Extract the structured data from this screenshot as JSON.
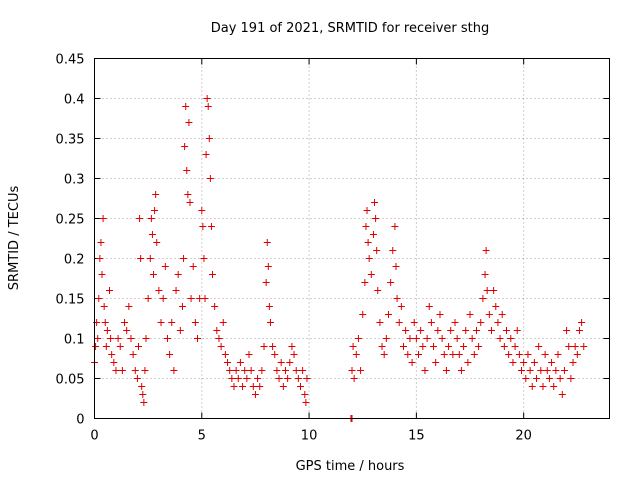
{
  "chart_data": {
    "type": "scatter",
    "title": "Day 191 of 2021, SRMTID for receiver sthg",
    "xlabel": "GPS time / hours",
    "ylabel": "SRMTID / TECUs",
    "xlim": [
      0,
      24
    ],
    "ylim": [
      0,
      0.45
    ],
    "xticks": [
      0,
      5,
      10,
      15,
      20
    ],
    "xtick_labels": [
      "0",
      "5",
      "10",
      "15",
      "20"
    ],
    "yticks": [
      0,
      0.05,
      0.1,
      0.15,
      0.2,
      0.25,
      0.3,
      0.35,
      0.4,
      0.45
    ],
    "ytick_labels": [
      "0",
      "0.05",
      "0.1",
      "0.15",
      "0.2",
      "0.25",
      "0.3",
      "0.35",
      "0.4",
      "0.45"
    ],
    "grid": true,
    "marker": "+",
    "marker_color": "#e00000",
    "series": [
      {
        "name": "SRMTID",
        "points": [
          [
            0.0,
            0.07
          ],
          [
            0.05,
            0.09
          ],
          [
            0.1,
            0.12
          ],
          [
            0.15,
            0.1
          ],
          [
            0.2,
            0.15
          ],
          [
            0.25,
            0.2
          ],
          [
            0.3,
            0.22
          ],
          [
            0.35,
            0.18
          ],
          [
            0.4,
            0.25
          ],
          [
            0.45,
            0.14
          ],
          [
            0.5,
            0.12
          ],
          [
            0.55,
            0.09
          ],
          [
            0.6,
            0.11
          ],
          [
            0.7,
            0.16
          ],
          [
            0.75,
            0.1
          ],
          [
            0.8,
            0.08
          ],
          [
            0.9,
            0.07
          ],
          [
            1.0,
            0.06
          ],
          [
            1.1,
            0.1
          ],
          [
            1.2,
            0.09
          ],
          [
            1.3,
            0.06
          ],
          [
            1.4,
            0.12
          ],
          [
            1.5,
            0.11
          ],
          [
            1.6,
            0.14
          ],
          [
            1.7,
            0.1
          ],
          [
            1.8,
            0.08
          ],
          [
            1.9,
            0.06
          ],
          [
            2.0,
            0.05
          ],
          [
            2.05,
            0.09
          ],
          [
            2.1,
            0.25
          ],
          [
            2.15,
            0.2
          ],
          [
            2.2,
            0.04
          ],
          [
            2.25,
            0.03
          ],
          [
            2.3,
            0.02
          ],
          [
            2.35,
            0.06
          ],
          [
            2.4,
            0.1
          ],
          [
            2.5,
            0.15
          ],
          [
            2.6,
            0.2
          ],
          [
            2.65,
            0.25
          ],
          [
            2.7,
            0.23
          ],
          [
            2.75,
            0.18
          ],
          [
            2.8,
            0.26
          ],
          [
            2.85,
            0.28
          ],
          [
            2.9,
            0.22
          ],
          [
            3.0,
            0.16
          ],
          [
            3.1,
            0.12
          ],
          [
            3.2,
            0.15
          ],
          [
            3.3,
            0.19
          ],
          [
            3.4,
            0.1
          ],
          [
            3.5,
            0.08
          ],
          [
            3.6,
            0.12
          ],
          [
            3.7,
            0.06
          ],
          [
            3.8,
            0.16
          ],
          [
            3.9,
            0.18
          ],
          [
            4.0,
            0.11
          ],
          [
            4.1,
            0.14
          ],
          [
            4.15,
            0.2
          ],
          [
            4.2,
            0.34
          ],
          [
            4.25,
            0.39
          ],
          [
            4.3,
            0.31
          ],
          [
            4.35,
            0.28
          ],
          [
            4.4,
            0.37
          ],
          [
            4.45,
            0.27
          ],
          [
            4.5,
            0.15
          ],
          [
            4.6,
            0.19
          ],
          [
            4.7,
            0.12
          ],
          [
            4.8,
            0.1
          ],
          [
            4.9,
            0.15
          ],
          [
            5.0,
            0.26
          ],
          [
            5.05,
            0.24
          ],
          [
            5.1,
            0.2
          ],
          [
            5.15,
            0.15
          ],
          [
            5.2,
            0.33
          ],
          [
            5.25,
            0.4
          ],
          [
            5.3,
            0.39
          ],
          [
            5.35,
            0.35
          ],
          [
            5.4,
            0.3
          ],
          [
            5.45,
            0.24
          ],
          [
            5.5,
            0.18
          ],
          [
            5.6,
            0.14
          ],
          [
            5.7,
            0.11
          ],
          [
            5.8,
            0.1
          ],
          [
            5.9,
            0.09
          ],
          [
            6.0,
            0.12
          ],
          [
            6.1,
            0.08
          ],
          [
            6.2,
            0.07
          ],
          [
            6.3,
            0.06
          ],
          [
            6.4,
            0.05
          ],
          [
            6.5,
            0.04
          ],
          [
            6.6,
            0.06
          ],
          [
            6.7,
            0.05
          ],
          [
            6.8,
            0.07
          ],
          [
            6.9,
            0.04
          ],
          [
            7.0,
            0.06
          ],
          [
            7.1,
            0.05
          ],
          [
            7.2,
            0.08
          ],
          [
            7.3,
            0.06
          ],
          [
            7.4,
            0.04
          ],
          [
            7.5,
            0.03
          ],
          [
            7.6,
            0.05
          ],
          [
            7.7,
            0.04
          ],
          [
            7.8,
            0.06
          ],
          [
            7.9,
            0.09
          ],
          [
            8.0,
            0.17
          ],
          [
            8.05,
            0.22
          ],
          [
            8.1,
            0.19
          ],
          [
            8.15,
            0.14
          ],
          [
            8.2,
            0.12
          ],
          [
            8.3,
            0.09
          ],
          [
            8.4,
            0.08
          ],
          [
            8.5,
            0.06
          ],
          [
            8.6,
            0.05
          ],
          [
            8.7,
            0.07
          ],
          [
            8.8,
            0.04
          ],
          [
            8.9,
            0.06
          ],
          [
            9.0,
            0.05
          ],
          [
            9.1,
            0.07
          ],
          [
            9.2,
            0.09
          ],
          [
            9.3,
            0.08
          ],
          [
            9.4,
            0.06
          ],
          [
            9.5,
            0.05
          ],
          [
            9.6,
            0.04
          ],
          [
            9.7,
            0.06
          ],
          [
            9.8,
            0.03
          ],
          [
            9.85,
            0.02
          ],
          [
            9.9,
            0.05
          ],
          [
            11.95,
            0.0
          ],
          [
            12.0,
            0.0
          ],
          [
            12.0,
            0.06
          ],
          [
            12.05,
            0.09
          ],
          [
            12.1,
            0.05
          ],
          [
            12.2,
            0.08
          ],
          [
            12.3,
            0.1
          ],
          [
            12.4,
            0.06
          ],
          [
            12.5,
            0.13
          ],
          [
            12.6,
            0.17
          ],
          [
            12.65,
            0.24
          ],
          [
            12.7,
            0.26
          ],
          [
            12.75,
            0.22
          ],
          [
            12.8,
            0.2
          ],
          [
            12.9,
            0.18
          ],
          [
            13.0,
            0.23
          ],
          [
            13.05,
            0.27
          ],
          [
            13.1,
            0.25
          ],
          [
            13.15,
            0.21
          ],
          [
            13.2,
            0.16
          ],
          [
            13.3,
            0.12
          ],
          [
            13.4,
            0.09
          ],
          [
            13.5,
            0.08
          ],
          [
            13.6,
            0.1
          ],
          [
            13.7,
            0.13
          ],
          [
            13.8,
            0.17
          ],
          [
            13.9,
            0.21
          ],
          [
            14.0,
            0.24
          ],
          [
            14.05,
            0.19
          ],
          [
            14.1,
            0.15
          ],
          [
            14.2,
            0.12
          ],
          [
            14.3,
            0.14
          ],
          [
            14.4,
            0.09
          ],
          [
            14.5,
            0.11
          ],
          [
            14.6,
            0.08
          ],
          [
            14.7,
            0.1
          ],
          [
            14.8,
            0.07
          ],
          [
            14.9,
            0.12
          ],
          [
            15.0,
            0.1
          ],
          [
            15.1,
            0.08
          ],
          [
            15.2,
            0.11
          ],
          [
            15.3,
            0.09
          ],
          [
            15.4,
            0.06
          ],
          [
            15.5,
            0.1
          ],
          [
            15.6,
            0.14
          ],
          [
            15.7,
            0.12
          ],
          [
            15.8,
            0.09
          ],
          [
            15.9,
            0.07
          ],
          [
            16.0,
            0.11
          ],
          [
            16.1,
            0.13
          ],
          [
            16.2,
            0.1
          ],
          [
            16.3,
            0.08
          ],
          [
            16.4,
            0.06
          ],
          [
            16.5,
            0.09
          ],
          [
            16.6,
            0.11
          ],
          [
            16.7,
            0.08
          ],
          [
            16.8,
            0.12
          ],
          [
            16.9,
            0.1
          ],
          [
            17.0,
            0.08
          ],
          [
            17.1,
            0.06
          ],
          [
            17.2,
            0.09
          ],
          [
            17.3,
            0.11
          ],
          [
            17.4,
            0.07
          ],
          [
            17.5,
            0.13
          ],
          [
            17.6,
            0.1
          ],
          [
            17.7,
            0.08
          ],
          [
            17.8,
            0.11
          ],
          [
            17.9,
            0.09
          ],
          [
            18.0,
            0.12
          ],
          [
            18.1,
            0.15
          ],
          [
            18.2,
            0.18
          ],
          [
            18.25,
            0.21
          ],
          [
            18.3,
            0.16
          ],
          [
            18.4,
            0.13
          ],
          [
            18.5,
            0.11
          ],
          [
            18.6,
            0.16
          ],
          [
            18.7,
            0.14
          ],
          [
            18.8,
            0.12
          ],
          [
            18.9,
            0.1
          ],
          [
            19.0,
            0.13
          ],
          [
            19.1,
            0.09
          ],
          [
            19.2,
            0.11
          ],
          [
            19.3,
            0.08
          ],
          [
            19.4,
            0.1
          ],
          [
            19.5,
            0.07
          ],
          [
            19.6,
            0.09
          ],
          [
            19.7,
            0.11
          ],
          [
            19.8,
            0.08
          ],
          [
            19.9,
            0.06
          ],
          [
            20.0,
            0.07
          ],
          [
            20.1,
            0.05
          ],
          [
            20.2,
            0.08
          ],
          [
            20.3,
            0.06
          ],
          [
            20.4,
            0.04
          ],
          [
            20.5,
            0.07
          ],
          [
            20.6,
            0.05
          ],
          [
            20.7,
            0.09
          ],
          [
            20.8,
            0.06
          ],
          [
            20.9,
            0.04
          ],
          [
            21.0,
            0.08
          ],
          [
            21.1,
            0.06
          ],
          [
            21.2,
            0.05
          ],
          [
            21.3,
            0.07
          ],
          [
            21.4,
            0.04
          ],
          [
            21.5,
            0.06
          ],
          [
            21.6,
            0.08
          ],
          [
            21.7,
            0.05
          ],
          [
            21.8,
            0.03
          ],
          [
            21.9,
            0.06
          ],
          [
            22.0,
            0.11
          ],
          [
            22.1,
            0.09
          ],
          [
            22.2,
            0.05
          ],
          [
            22.3,
            0.07
          ],
          [
            22.4,
            0.09
          ],
          [
            22.5,
            0.08
          ],
          [
            22.6,
            0.11
          ],
          [
            22.7,
            0.12
          ],
          [
            22.8,
            0.09
          ]
        ]
      }
    ]
  }
}
